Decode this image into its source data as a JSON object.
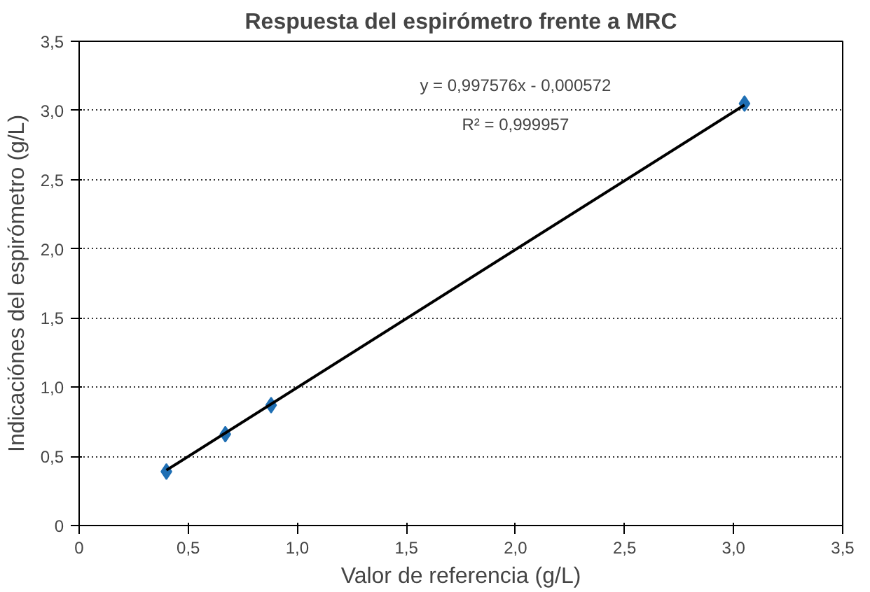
{
  "chart_data": {
    "type": "scatter",
    "title": "Respuesta del espirómetro frente a MRC",
    "xlabel": "Valor de referencia (g/L)",
    "ylabel": "Indicaciónes del espirómetro (g/L)",
    "annotations": [
      "y = 0,997576x - 0,000572",
      "R² = 0,999957"
    ],
    "x": [
      0.4,
      0.67,
      0.88,
      3.05
    ],
    "series": [
      {
        "color": "#1f6fb4",
        "values": [
          0.39,
          0.66,
          0.87,
          3.05
        ]
      },
      {
        "type": "line",
        "marker": "none",
        "color": "#000000",
        "x": [
          0.4,
          3.05
        ],
        "values": [
          0.4,
          3.04
        ]
      }
    ],
    "xlim": [
      0,
      3.5
    ],
    "ylim": [
      0,
      3.5
    ],
    "xticks": [
      0,
      {
        "value": 0.5,
        "label": "0,5"
      },
      {
        "value": 1,
        "label": "1,0"
      },
      {
        "value": 1.5,
        "label": "1,5"
      },
      {
        "value": 2,
        "label": "2,0"
      },
      {
        "value": 2.5,
        "label": "2,5"
      },
      {
        "value": 3,
        "label": "3,0"
      },
      {
        "value": 3.5,
        "label": "3,5"
      }
    ],
    "yticks": [
      0,
      {
        "value": 0.5,
        "label": "0,5"
      },
      {
        "value": 1,
        "label": "1,0"
      },
      {
        "value": 1.5,
        "label": "1,5"
      },
      {
        "value": 2,
        "label": "2,0"
      },
      {
        "value": 2.5,
        "label": "2,5"
      },
      {
        "value": 3,
        "label": "3,0"
      },
      {
        "value": 3.5,
        "label": "3,5"
      }
    ],
    "grid": "y",
    "marker": "diamond",
    "line_style": "solid"
  }
}
